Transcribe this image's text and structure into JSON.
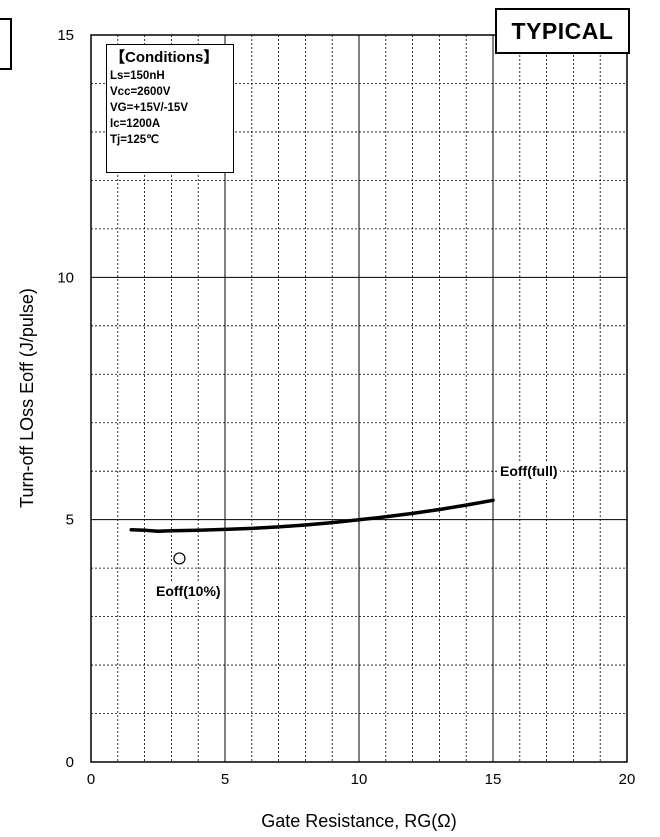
{
  "badge": "TYPICAL",
  "conditions": {
    "title": "【Conditions】",
    "lines": [
      "Ls=150nH",
      "Vcc=2600V",
      "VG=+15V/-15V",
      "Ic=1200A",
      "Tj=125℃"
    ]
  },
  "chart_data": {
    "type": "line",
    "xlabel": "Gate Resistance, RG(Ω)",
    "ylabel": "Turn-off LOss Eoff (J/pulse)",
    "xlim": [
      0,
      20
    ],
    "ylim": [
      0,
      15
    ],
    "x_ticks": [
      "0",
      "5",
      "10",
      "15",
      "20"
    ],
    "y_ticks": [
      "0",
      "5",
      "10",
      "15"
    ],
    "grid": true,
    "series": [
      {
        "name": "Eoff(full)",
        "x": [
          1.5,
          2.0,
          2.5,
          3.0,
          4.0,
          5.0,
          6.0,
          7.0,
          8.0,
          9.0,
          10.0,
          11.0,
          12.0,
          13.0,
          14.0,
          15.0
        ],
        "y": [
          4.79,
          4.78,
          4.76,
          4.77,
          4.78,
          4.8,
          4.82,
          4.85,
          4.89,
          4.94,
          5.0,
          5.06,
          5.13,
          5.21,
          5.3,
          5.4
        ]
      },
      {
        "name": "Eoff(10%)",
        "x": [
          3.3
        ],
        "y": [
          4.2
        ]
      }
    ]
  }
}
